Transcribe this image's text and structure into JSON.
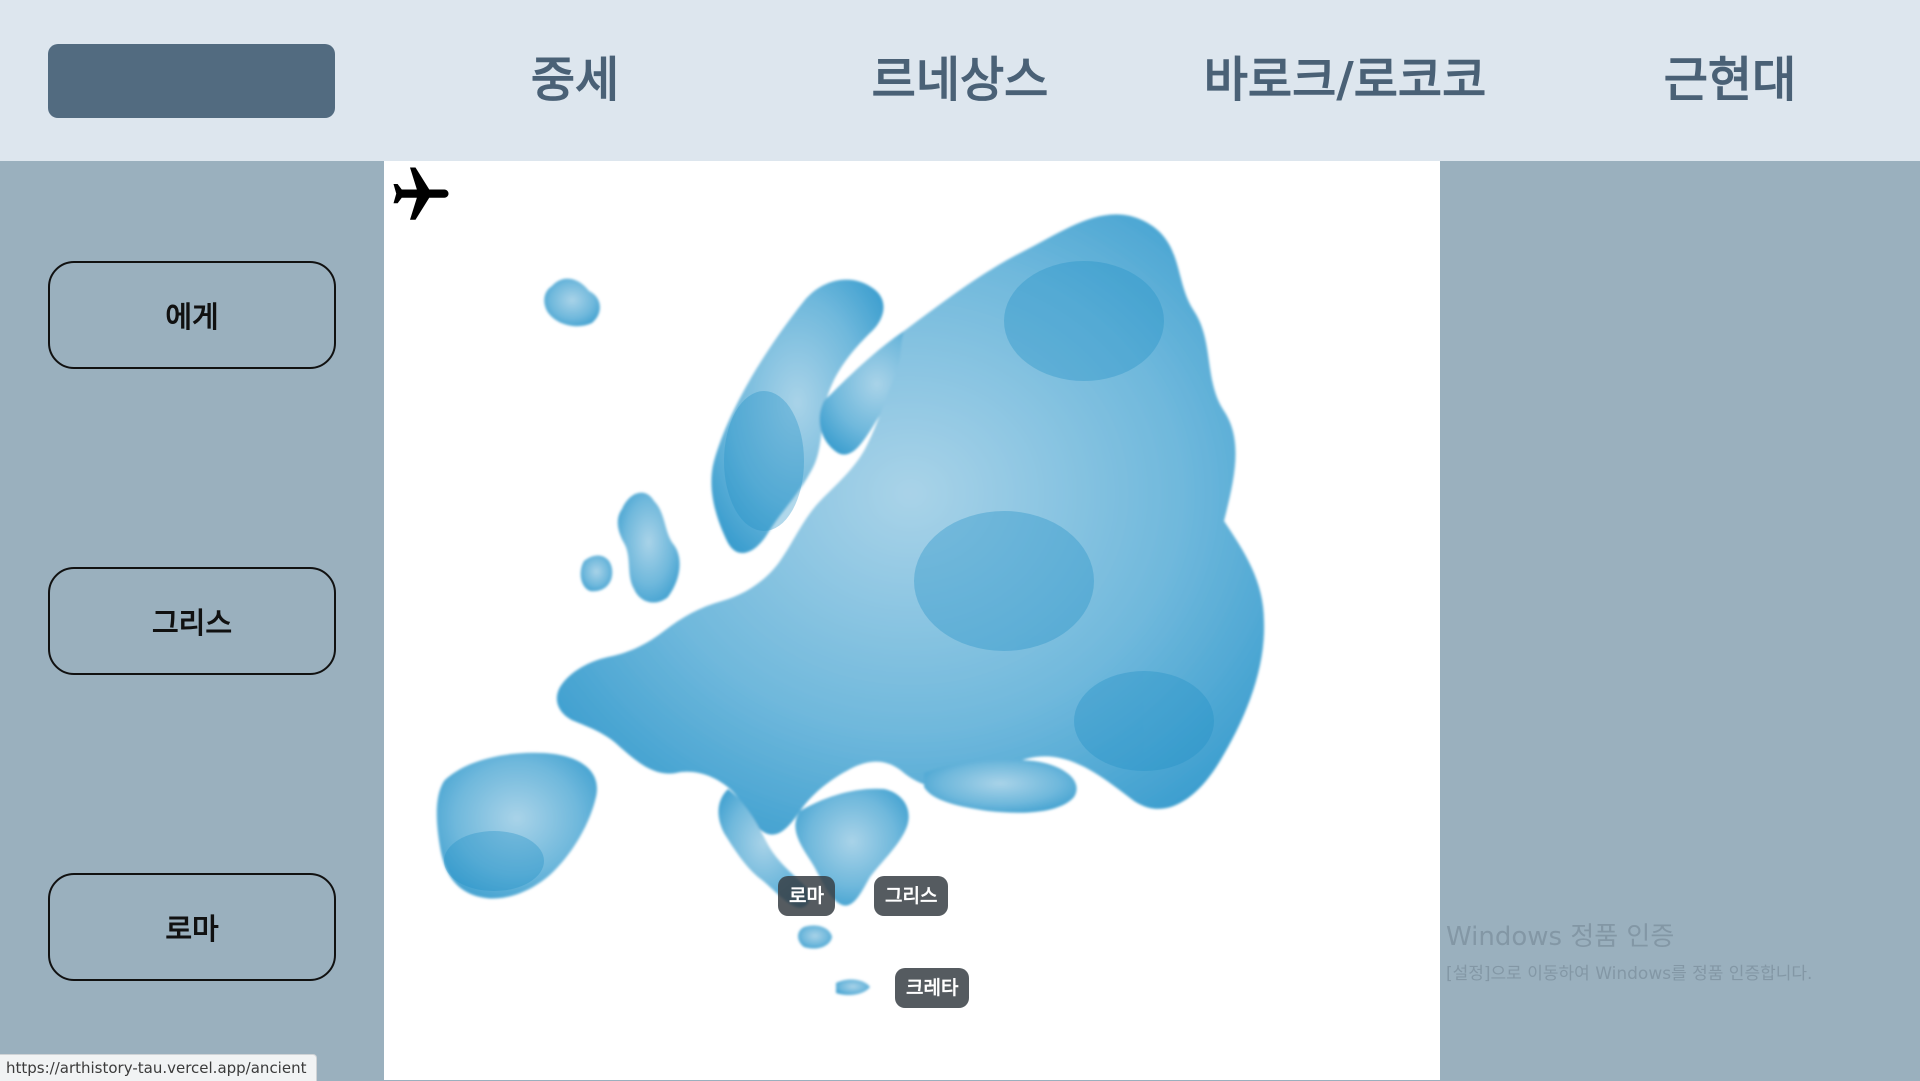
{
  "nav": {
    "active_label": "",
    "tabs": [
      {
        "label": "중세"
      },
      {
        "label": "르네상스"
      },
      {
        "label": "바로크/로코코"
      },
      {
        "label": "근현대"
      }
    ]
  },
  "sidebar": {
    "items": [
      {
        "label": "에게"
      },
      {
        "label": "그리스"
      },
      {
        "label": "로마"
      }
    ]
  },
  "map": {
    "icon": "airplane-icon",
    "pins": [
      {
        "label": "로마"
      },
      {
        "label": "그리스"
      },
      {
        "label": "크레타"
      }
    ],
    "colors": {
      "land": "#5aaed5",
      "land_dark": "#1f8fc6",
      "background": "#ffffff"
    }
  },
  "watermark": {
    "title": "Windows 정품 인증",
    "subtitle": "[설정]으로 이동하여 Windows를 정품 인증합니다."
  },
  "status": {
    "url": "https://arthistory-tau.vercel.app/ancient"
  },
  "colors": {
    "nav_bg": "#dde6ee",
    "nav_active": "#526b80",
    "nav_text": "#4a6176",
    "page_bg": "#9ab0be"
  }
}
